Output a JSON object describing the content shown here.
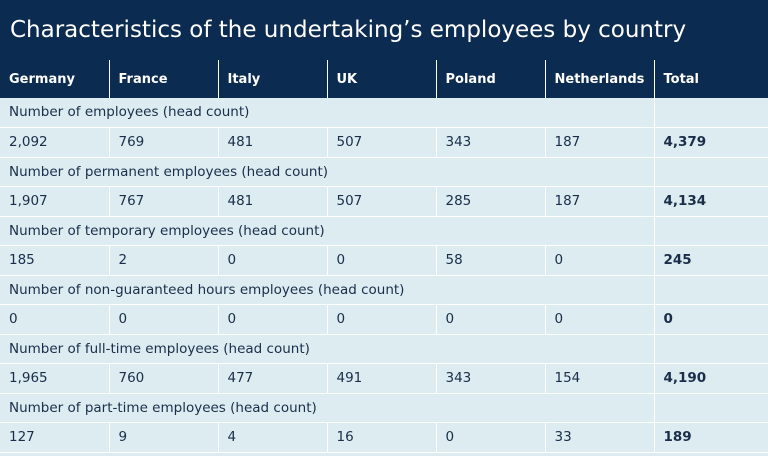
{
  "title": "Characteristics of the undertaking’s employees by country",
  "columns": [
    "Germany",
    "France",
    "Italy",
    "UK",
    "Poland",
    "Netherlands",
    "Total"
  ],
  "rows": [
    {
      "label": "Number of employees (head count)",
      "values": [
        "2,092",
        "769",
        "481",
        "507",
        "343",
        "187",
        "4,379"
      ]
    },
    {
      "label": "Number of permanent employees (head count)",
      "values": [
        "1,907",
        "767",
        "481",
        "507",
        "285",
        "187",
        "4,134"
      ]
    },
    {
      "label": "Number of temporary employees (head count)",
      "values": [
        "185",
        "2",
        "0",
        "0",
        "58",
        "0",
        "245"
      ]
    },
    {
      "label": "Number of non-guaranteed hours employees (head count)",
      "values": [
        "0",
        "0",
        "0",
        "0",
        "0",
        "0",
        "0"
      ]
    },
    {
      "label": "Number of full-time employees (head count)",
      "values": [
        "1,965",
        "760",
        "477",
        "491",
        "343",
        "154",
        "4,190"
      ]
    },
    {
      "label": "Number of part-time employees (head count)",
      "values": [
        "127",
        "9",
        "4",
        "16",
        "0",
        "33",
        "189"
      ]
    }
  ]
}
